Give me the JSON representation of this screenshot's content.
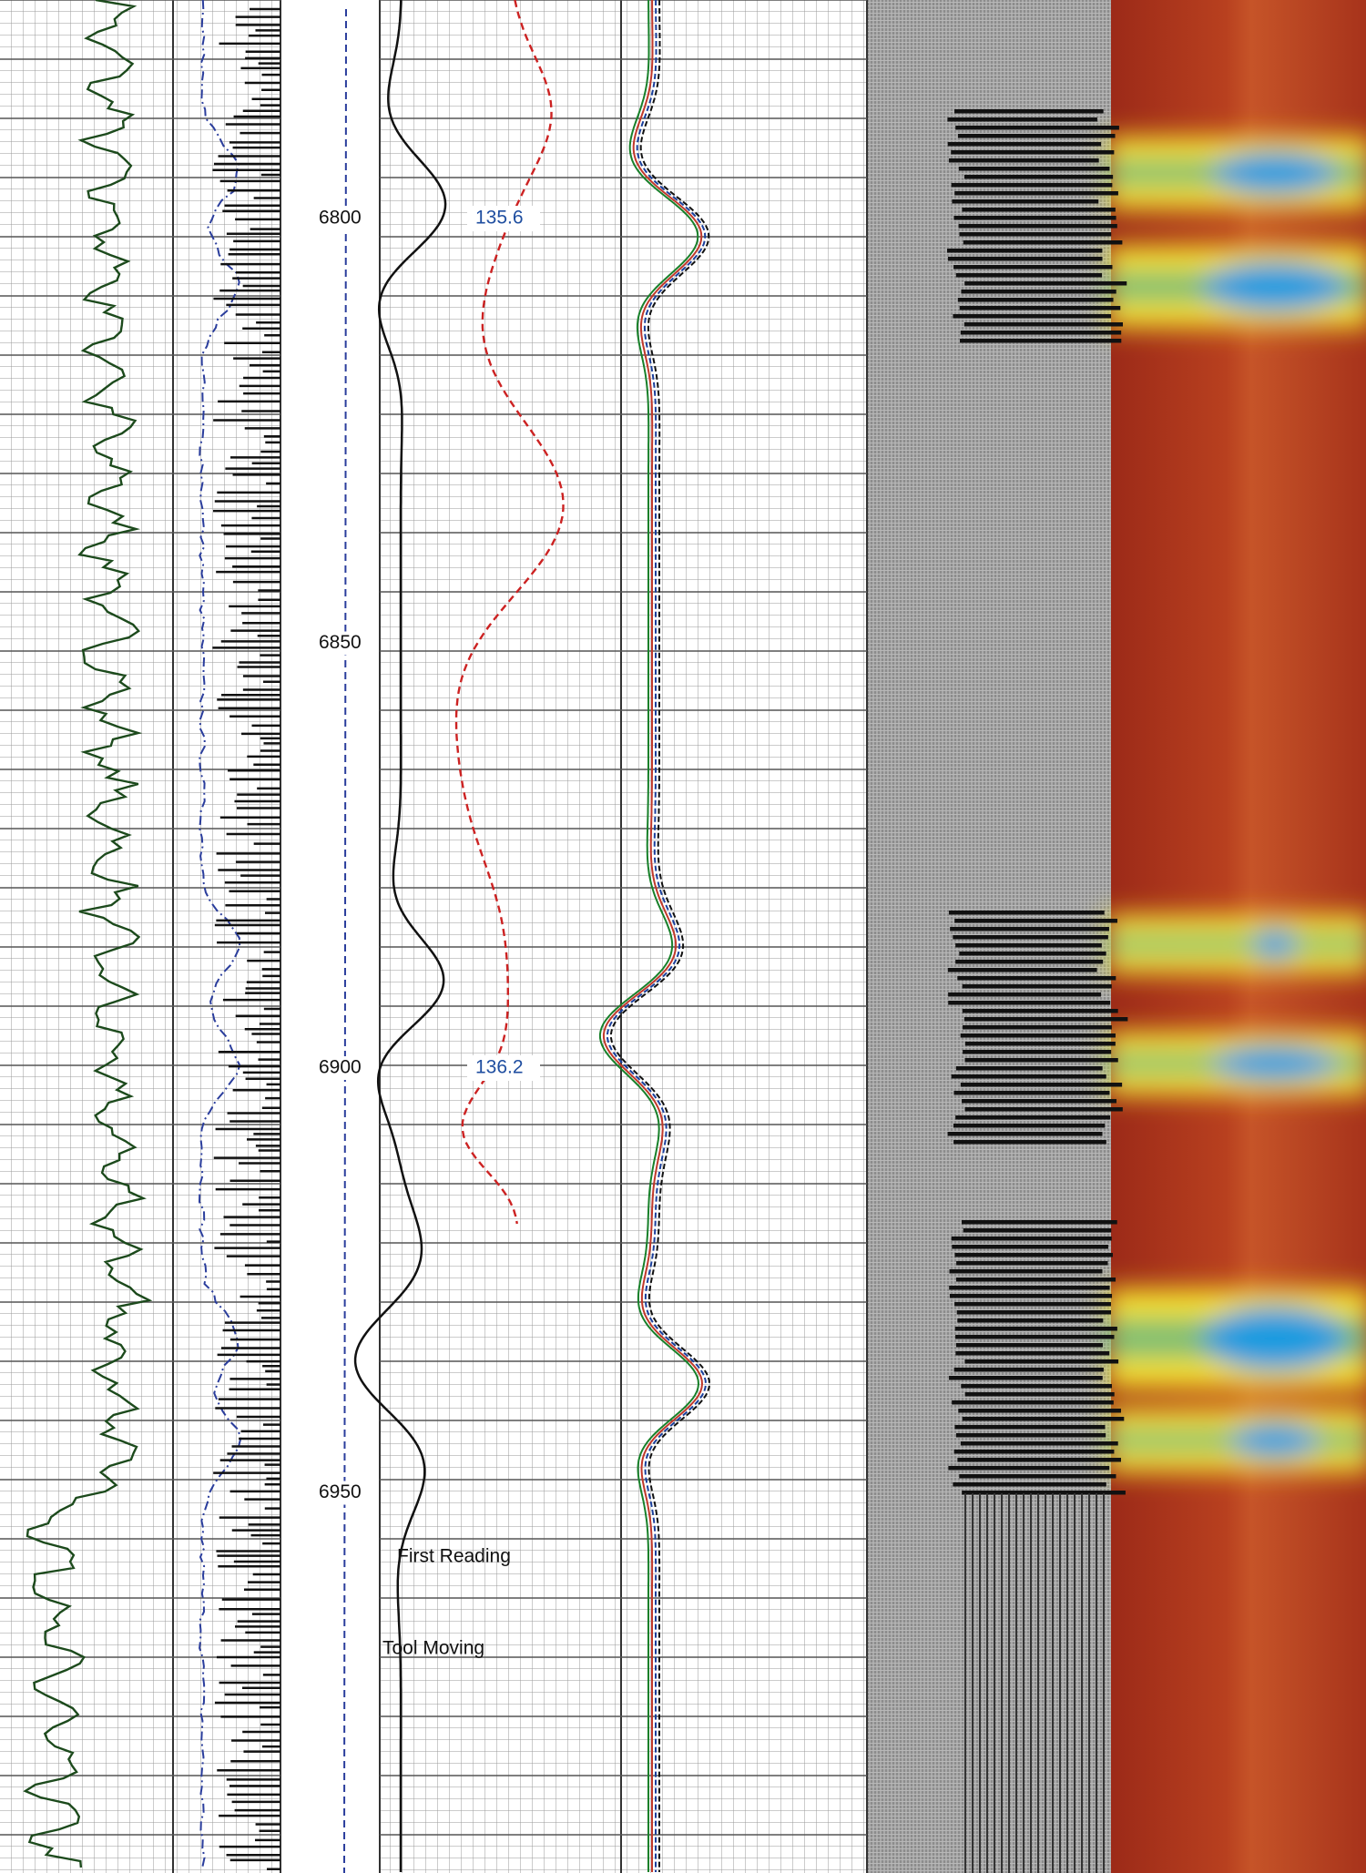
{
  "depth_track": {
    "labels": [
      6800,
      6850,
      6900,
      6950
    ]
  },
  "annotations": [
    {
      "depth": 6800,
      "text": "135.6"
    },
    {
      "depth": 6900,
      "text": "136.2"
    }
  ],
  "notes": [
    "First Reading",
    "Tool Moving"
  ]
}
